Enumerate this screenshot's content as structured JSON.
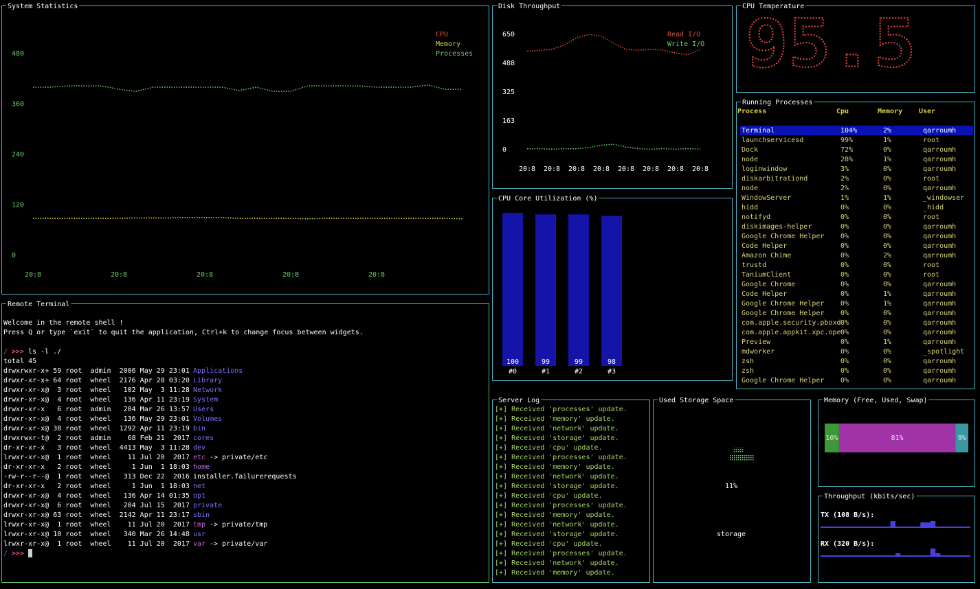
{
  "chart_data": [
    {
      "type": "line",
      "title": "System Statistics",
      "categories": [
        "20:8",
        null,
        null,
        null,
        null,
        "20:8",
        null,
        null,
        null,
        null,
        "20:8",
        null,
        null,
        null,
        null,
        "20:8",
        null,
        null,
        null,
        null,
        "20:8",
        null,
        null,
        null,
        null,
        null
      ],
      "series": [
        {
          "name": "CPU",
          "color": "#e5533c",
          "values": [
            88,
            88,
            88,
            88,
            88,
            88,
            89,
            89,
            89,
            90,
            90,
            90,
            88,
            88,
            88,
            88,
            87,
            88,
            88,
            88,
            88,
            88,
            88,
            88,
            88,
            87
          ]
        },
        {
          "name": "Memory",
          "color": "#d6cf3e",
          "values": [
            88,
            88,
            88,
            88,
            88,
            88,
            89,
            89,
            89,
            90,
            90,
            90,
            88,
            88,
            88,
            88,
            87,
            88,
            88,
            88,
            88,
            88,
            88,
            88,
            88,
            87
          ]
        },
        {
          "name": "Processes",
          "color": "#6fd06a",
          "values": [
            400,
            400,
            403,
            403,
            403,
            395,
            390,
            400,
            400,
            400,
            400,
            400,
            392,
            400,
            390,
            390,
            403,
            403,
            403,
            403,
            400,
            400,
            400,
            405,
            395,
            395
          ]
        }
      ],
      "ylim": [
        0,
        480
      ],
      "yticks": [
        0,
        120,
        240,
        360,
        480
      ],
      "legend": "top-right"
    },
    {
      "type": "line",
      "title": "Disk Throughput",
      "categories": [
        "20:8",
        null,
        "20:8",
        null,
        "20:8",
        null,
        "20:8",
        null,
        "20:8",
        null,
        "20:8",
        null,
        "20:8",
        null,
        "20:8"
      ],
      "series": [
        {
          "name": "Read I/O",
          "color": "#e5533c",
          "values": [
            555,
            560,
            565,
            590,
            630,
            650,
            640,
            600,
            565,
            560,
            565,
            560,
            545,
            535,
            565
          ]
        },
        {
          "name": "Write I/O",
          "color": "#6fd06a",
          "values": [
            5,
            5,
            3,
            5,
            5,
            12,
            25,
            30,
            15,
            5,
            3,
            5,
            3,
            5,
            3
          ]
        }
      ],
      "ylim": [
        0,
        650
      ],
      "yticks": [
        0,
        163,
        325,
        488,
        650
      ],
      "legend": "top-right"
    },
    {
      "type": "bar",
      "title": "CPU Core Utilization (%)",
      "categories": [
        "#0",
        "#1",
        "#2",
        "#3"
      ],
      "values": [
        100,
        99,
        99,
        98
      ],
      "color": "#1414a8"
    },
    {
      "type": "stacked-bar",
      "title": "Memory (Free, Used, Swap)",
      "series": [
        {
          "color": "#3b9a35",
          "values": [
            10
          ],
          "value_labels": [
            "10%"
          ]
        },
        {
          "color": "#a033a6",
          "values": [
            81
          ],
          "value_labels": [
            "81%"
          ]
        },
        {
          "color": "#3a98a3",
          "values": [
            9
          ],
          "value_labels": [
            "9%"
          ]
        }
      ]
    },
    {
      "type": "sparkline",
      "title": "Throughput (kbits/sec)",
      "series": [
        {
          "name": "TX (108 B/s):",
          "color": "#4a3fe0",
          "values": [
            0,
            0,
            0,
            0,
            0,
            0,
            0,
            0,
            0,
            0,
            0,
            0,
            0,
            0,
            0.8,
            0,
            0,
            0,
            0,
            0,
            0.6,
            0.6,
            0.8,
            0,
            0,
            0,
            0,
            0,
            0,
            0
          ]
        },
        {
          "name": "RX (320 B/s):",
          "color": "#4a3fe0",
          "values": [
            0,
            0,
            0,
            0,
            0,
            0,
            0,
            0,
            0,
            0,
            0,
            0,
            0,
            0,
            0,
            0.3,
            0,
            0,
            0,
            0,
            0,
            0,
            1.0,
            0.3,
            0,
            0,
            0,
            0,
            0,
            0
          ]
        }
      ]
    }
  ],
  "cpu_temperature": {
    "title": "CPU Temperature",
    "value": "95.5"
  },
  "running_processes": {
    "title": "Running Processes",
    "columns": [
      "Process",
      "Cpu",
      "Memory",
      "User"
    ],
    "rows": [
      [
        "Terminal",
        "104%",
        "2%",
        "qarroumh"
      ],
      [
        "launchservicesd",
        "99%",
        "1%",
        "root"
      ],
      [
        "Dock",
        "72%",
        "0%",
        "qarroumh"
      ],
      [
        "node",
        "28%",
        "1%",
        "qarroumh"
      ],
      [
        "loginwindow",
        "3%",
        "0%",
        "qarroumh"
      ],
      [
        "diskarbitrationd",
        "2%",
        "0%",
        "root"
      ],
      [
        "node",
        "2%",
        "0%",
        "qarroumh"
      ],
      [
        "WindowServer",
        "1%",
        "1%",
        "_windowser"
      ],
      [
        "hidd",
        "0%",
        "0%",
        "_hidd"
      ],
      [
        "notifyd",
        "0%",
        "0%",
        "root"
      ],
      [
        "diskimages-helper",
        "0%",
        "0%",
        "qarroumh"
      ],
      [
        "Google Chrome Helper",
        "0%",
        "0%",
        "qarroumh"
      ],
      [
        "Code Helper",
        "0%",
        "0%",
        "qarroumh"
      ],
      [
        "Amazon Chime",
        "0%",
        "2%",
        "qarroumh"
      ],
      [
        "trustd",
        "0%",
        "0%",
        "root"
      ],
      [
        "TaniumClient",
        "0%",
        "0%",
        "root"
      ],
      [
        "Google Chrome",
        "0%",
        "0%",
        "qarroumh"
      ],
      [
        "Code Helper",
        "0%",
        "1%",
        "qarroumh"
      ],
      [
        "Google Chrome Helper",
        "0%",
        "1%",
        "qarroumh"
      ],
      [
        "Google Chrome Helper",
        "0%",
        "0%",
        "qarroumh"
      ],
      [
        "com.apple.security.pboxd",
        "0%",
        "0%",
        "qarroumh"
      ],
      [
        "com.apple.appkit.xpc.ope",
        "0%",
        "0%",
        "qarroumh"
      ],
      [
        "Preview",
        "0%",
        "1%",
        "qarroumh"
      ],
      [
        "mdworker",
        "0%",
        "0%",
        "_spotlight"
      ],
      [
        "zsh",
        "0%",
        "0%",
        "qarroumh"
      ],
      [
        "zsh",
        "0%",
        "0%",
        "qarroumh"
      ],
      [
        "Google Chrome Helper",
        "0%",
        "0%",
        "qarroumh"
      ]
    ]
  },
  "remote_terminal": {
    "title": "Remote Terminal",
    "welcome": [
      "Welcome in the remote shell !",
      "Press Q or type `exit` to quit the application, Ctrl+k to change focus between widgets."
    ],
    "prompt_path": "/",
    "prompt_arrows": ">>>",
    "command": "ls -l ./",
    "total": "total 45",
    "listing": [
      {
        "meta": "drwxrwxr-x+ 59 root  admin  2006 May 29 23:01",
        "name": "Applications",
        "color": "#7f70ff"
      },
      {
        "meta": "drwxr-xr-x+ 64 root  wheel  2176 Apr 28 03:20",
        "name": "Library",
        "color": "#7f70ff"
      },
      {
        "meta": "drwxr-xr-x@  3 root  wheel   102 May  3 11:28",
        "name": "Network",
        "color": "#7f70ff"
      },
      {
        "meta": "drwxr-xr-x@  4 root  wheel   136 Apr 11 23:19",
        "name": "System",
        "color": "#7f70ff"
      },
      {
        "meta": "drwxr-xr-x   6 root  admin   204 Mar 26 13:57",
        "name": "Users",
        "color": "#7f70ff"
      },
      {
        "meta": "drwxr-xr-x@  4 root  wheel   136 May 29 23:01",
        "name": "Volumes",
        "color": "#7f70ff"
      },
      {
        "meta": "drwxr-xr-x@ 38 root  wheel  1292 Apr 11 23:19",
        "name": "bin",
        "color": "#7f70ff"
      },
      {
        "meta": "drwxrwxr-t@  2 root  admin    68 Feb 21  2017",
        "name": "cores",
        "color": "#7f70ff"
      },
      {
        "meta": "dr-xr-xr-x   3 root  wheel  4413 May  3 11:28",
        "name": "dev",
        "color": "#7f70ff"
      },
      {
        "meta": "lrwxr-xr-x@  1 root  wheel    11 Jul 20  2017",
        "name": "etc",
        "color": "#d75fe0",
        "target": "-> private/etc"
      },
      {
        "meta": "dr-xr-xr-x   2 root  wheel     1 Jun  1 18:03",
        "name": "home",
        "color": "#c86ff0"
      },
      {
        "meta": "-rw-r--r--@  1 root  wheel   313 Dec 22  2016",
        "name": "installer.failurerequests",
        "color": "#ffffff"
      },
      {
        "meta": "dr-xr-xr-x   2 root  wheel     1 Jun  1 18:03",
        "name": "net",
        "color": "#9a6ff0"
      },
      {
        "meta": "drwxr-xr-x@  4 root  wheel   136 Apr 14 01:35",
        "name": "opt",
        "color": "#7f70ff"
      },
      {
        "meta": "drwxr-xr-x@  6 root  wheel   204 Jul 15  2017",
        "name": "private",
        "color": "#7f70ff"
      },
      {
        "meta": "drwxr-xr-x@ 63 root  wheel  2142 Apr 11 23:17",
        "name": "sbin",
        "color": "#7f70ff"
      },
      {
        "meta": "lrwxr-xr-x@  1 root  wheel    11 Jul 20  2017",
        "name": "tmp",
        "color": "#d75fe0",
        "target": "-> private/tmp"
      },
      {
        "meta": "lrwxr-xr-x@ 10 root  wheel   340 Mar 26 14:48",
        "name": "usr",
        "color": "#7f70ff"
      },
      {
        "meta": "lrwxr-xr-x@  1 root  wheel    11 Jul 20  2017",
        "name": "var",
        "color": "#d75fe0",
        "target": "-> private/var"
      }
    ]
  },
  "server_log": {
    "title": "Server Log",
    "lines": [
      "[+] Received 'processes' update.",
      "[+] Received 'memory' update.",
      "[+] Received 'network' update.",
      "[+] Received 'storage' update.",
      "[+] Received 'cpu' update.",
      "[+] Received 'processes' update.",
      "[+] Received 'memory' update.",
      "[+] Received 'network' update.",
      "[+] Received 'storage' update.",
      "[+] Received 'cpu' update.",
      "[+] Received 'processes' update.",
      "[+] Received 'memory' update.",
      "[+] Received 'network' update.",
      "[+] Received 'storage' update.",
      "[+] Received 'cpu' update.",
      "[+] Received 'processes' update.",
      "[+] Received 'network' update.",
      "[+] Received 'memory' update."
    ]
  },
  "used_storage_space": {
    "title": "Used Storage Space",
    "value_label": "11%",
    "label": "storage"
  }
}
